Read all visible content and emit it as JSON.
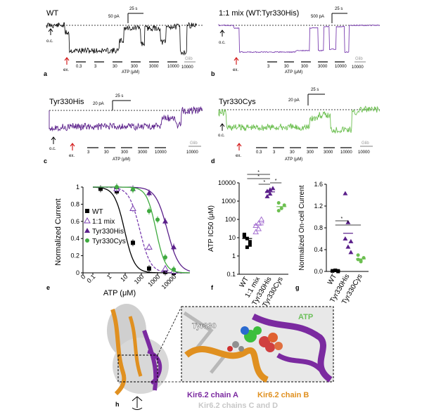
{
  "panels": {
    "a": {
      "letter": "a",
      "label": "WT",
      "scale_current": "50 pA",
      "scale_time": "25 s",
      "oc": "o.c.",
      "ex": "ex.",
      "concs": [
        "0.3",
        "3",
        "30",
        "300",
        "3000",
        "10000"
      ],
      "glib": "Glib",
      "glib_conc": "10000",
      "xlabel": "ATP (μM)",
      "color": "#000000"
    },
    "b": {
      "letter": "b",
      "label": "1:1 mix (WT:Tyr330His)",
      "scale_current": "500 pA",
      "scale_time": "25 s",
      "oc": "o.c.",
      "ex": "ex.",
      "concs": [
        "3",
        "30",
        "300",
        "3000",
        "10000"
      ],
      "glib": "Glib",
      "glib_conc": "10000",
      "xlabel": "ATP (μM)",
      "color": "#7b3fb0"
    },
    "c": {
      "letter": "c",
      "label": "Tyr330His",
      "scale_current": "20 pA",
      "scale_time": "25 s",
      "oc": "o.c.",
      "ex": "ex.",
      "concs": [
        "3",
        "30",
        "300",
        "3000",
        "10000"
      ],
      "glib": "Glib",
      "glib_conc": "10000",
      "xlabel": "ATP (μM)",
      "color": "#5a1f8a"
    },
    "d": {
      "letter": "d",
      "label": "Tyr330Cys",
      "scale_current": "20 pA",
      "scale_time": "25 s",
      "oc": "o.c.",
      "ex": "ex.",
      "concs": [
        "0.3",
        "3",
        "30",
        "300",
        "3000",
        "10000"
      ],
      "glib": "Glib",
      "glib_conc": "10000",
      "xlabel": "ATP (μM)",
      "color": "#6cbf50"
    },
    "h": {
      "letter": "h",
      "atp_label": "ATP",
      "residue_label": "Tyr330",
      "legend_chain_a": "Kir6.2 chain A",
      "legend_chain_b": "Kir6.2 chain B",
      "legend_chains_cd": "Kir6.2 chains C and D",
      "colors": {
        "chain_a": "#7b2aa0",
        "chain_b": "#e09020",
        "chains_cd": "#c8c8c8",
        "atp": "#6cc05a"
      }
    }
  },
  "chart_data": [
    {
      "type": "line",
      "panel": "e",
      "xlabel": "ATP (μM)",
      "ylabel": "Normalized Current",
      "x_scale": "log",
      "xlim": [
        0,
        100000
      ],
      "ylim": [
        0,
        1
      ],
      "xticks": [
        "0",
        "0.1",
        "1",
        "10",
        "100",
        "1000",
        "10000"
      ],
      "yticks": [
        "0",
        "0.2",
        "0.4",
        "0.6",
        "0.8",
        "1"
      ],
      "legend_position": "center-left",
      "series": [
        {
          "name": "WT",
          "color": "#000000",
          "marker": "square",
          "line": "solid",
          "points": [
            [
              0.3,
              0.98
            ],
            [
              3,
              0.95
            ],
            [
              30,
              0.35
            ],
            [
              300,
              0.05
            ],
            [
              3000,
              0.01
            ],
            [
              10000,
              0.0
            ]
          ],
          "ic50": 9,
          "hill": 1.4
        },
        {
          "name": "1:1 mix",
          "color": "#7b3fb0",
          "marker": "open-triangle",
          "line": "dashed",
          "points": [
            [
              3,
              0.98
            ],
            [
              30,
              0.75
            ],
            [
              300,
              0.3
            ],
            [
              3000,
              0.05
            ],
            [
              10000,
              0.02
            ]
          ],
          "ic50": 80,
          "hill": 1.3
        },
        {
          "name": "Tyr330His",
          "color": "#5a1f8a",
          "marker": "triangle",
          "line": "solid",
          "points": [
            [
              3,
              1.0
            ],
            [
              30,
              0.98
            ],
            [
              300,
              0.93
            ],
            [
              3000,
              0.6
            ],
            [
              10000,
              0.3
            ]
          ],
          "ic50": 4000,
          "hill": 1.2
        },
        {
          "name": "Tyr330Cys",
          "color": "#3faa3f",
          "marker": "circle",
          "line": "solid",
          "points": [
            [
              3,
              1.0
            ],
            [
              30,
              0.97
            ],
            [
              300,
              0.72
            ],
            [
              1000,
              0.62
            ],
            [
              3000,
              0.18
            ],
            [
              10000,
              0.04
            ]
          ],
          "ic50": 800,
          "hill": 1.5
        }
      ]
    },
    {
      "type": "scatter",
      "panel": "f",
      "ylabel": "ATP IC50 (μM)",
      "y_scale": "log",
      "ylim": [
        0.1,
        10000
      ],
      "yticks": [
        "0.1",
        "1",
        "10",
        "100",
        "1000",
        "10000"
      ],
      "categories": [
        "WT",
        "1:1 mix",
        "Tyr330His",
        "Tyr330Cys"
      ],
      "colors": [
        "#000000",
        "#a46fd0",
        "#5a1f8a",
        "#6cbf50"
      ],
      "markers": [
        "square",
        "open-triangle",
        "triangle",
        "circle"
      ],
      "values": [
        [
          12,
          9,
          6,
          15,
          3,
          4,
          14
        ],
        [
          45,
          30,
          80,
          20,
          60,
          100
        ],
        [
          3500,
          2500,
          5000,
          1800,
          4200
        ],
        [
          800,
          400,
          600,
          300
        ]
      ],
      "means": [
        9,
        50,
        3200,
        500
      ],
      "significance": "*"
    },
    {
      "type": "scatter",
      "panel": "g",
      "ylabel": "Normalized On-cell Current",
      "ylim": [
        0,
        1.6
      ],
      "yticks": [
        "0.0",
        "0.4",
        "0.8",
        "1.2",
        "1.6"
      ],
      "categories": [
        "WT",
        "Tyr330His",
        "Tyr330Cys"
      ],
      "colors": [
        "#000000",
        "#5a1f8a",
        "#6cbf50"
      ],
      "markers": [
        "square",
        "triangle",
        "circle"
      ],
      "values": [
        [
          0.01,
          0.02,
          0.0,
          0.01,
          0.02,
          0.01
        ],
        [
          1.43,
          0.45,
          0.35,
          0.6,
          0.9,
          0.55
        ],
        [
          0.3,
          0.2,
          0.25,
          0.22,
          0.18
        ]
      ],
      "means": [
        0.01,
        0.7,
        0.23
      ],
      "significance": "*"
    }
  ]
}
